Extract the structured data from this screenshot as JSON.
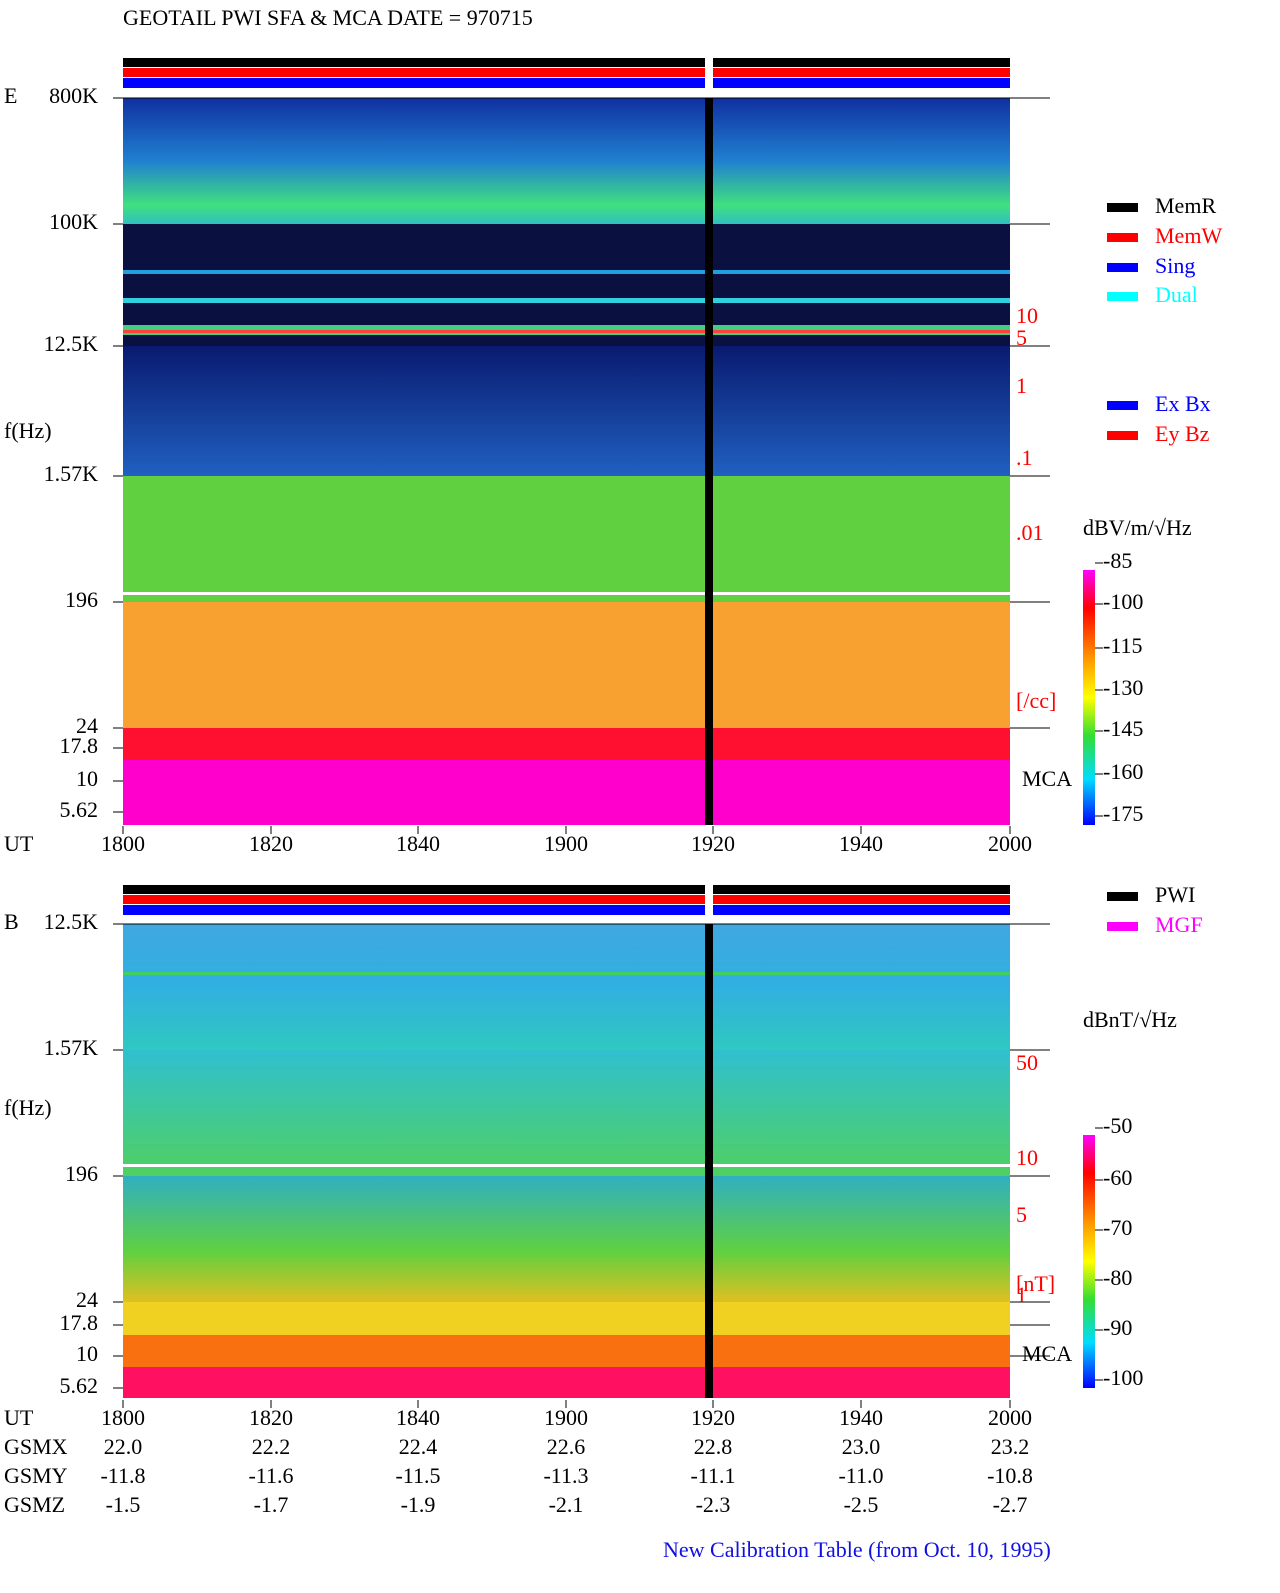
{
  "header": {
    "title": "GEOTAIL  PWI SFA & MCA   DATE = 970715"
  },
  "panels": [
    {
      "label": "E",
      "ylabel": "f(Hz)",
      "yticks": [
        "800K",
        "100K",
        "12.5K",
        "1.57K",
        "196",
        "24",
        "17.8",
        "10",
        "5.62"
      ],
      "right_ticks": [
        "10",
        "5",
        "1",
        ".1",
        ".01",
        "[/cc]"
      ],
      "mca": "MCA",
      "xlabel": "UT",
      "xticks": [
        "1800",
        "1820",
        "1840",
        "1900",
        "1920",
        "1940",
        "2000"
      ],
      "legend": [
        "MemR",
        "MemW",
        "Sing",
        "Dual"
      ],
      "legend2": [
        "Ex Bx",
        "Ey Bz"
      ],
      "colorbar": {
        "title": "dBV/m/√Hz",
        "ticks": [
          "-85",
          "-100",
          "-115",
          "-130",
          "-145",
          "-160",
          "-175"
        ]
      }
    },
    {
      "label": "B",
      "ylabel": "f(Hz)",
      "yticks": [
        "12.5K",
        "1.57K",
        "196",
        "24",
        "17.8",
        "10",
        "5.62"
      ],
      "right_ticks": [
        "50",
        "10",
        "5",
        "[nT]",
        "1"
      ],
      "mca": "MCA",
      "xlabel": "UT",
      "xticks": [
        "1800",
        "1820",
        "1840",
        "1900",
        "1920",
        "1940",
        "2000"
      ],
      "legend": [
        "PWI",
        "MGF"
      ],
      "colorbar": {
        "title": "dBnT/√Hz",
        "ticks": [
          "-50",
          "-60",
          "-70",
          "-80",
          "-90",
          "-100"
        ]
      }
    }
  ],
  "orbit": [
    {
      "name": "GSMX",
      "values": [
        "22.0",
        "22.2",
        "22.4",
        "22.6",
        "22.8",
        "23.0",
        "23.2"
      ]
    },
    {
      "name": "GSMY",
      "values": [
        "-11.8",
        "-11.6",
        "-11.5",
        "-11.3",
        "-11.1",
        "-11.0",
        "-10.8"
      ]
    },
    {
      "name": "GSMZ",
      "values": [
        "-1.5",
        "-1.7",
        "-1.9",
        "-2.1",
        "-2.3",
        "-2.5",
        "-2.7"
      ]
    }
  ],
  "footer": "New Calibration Table (from Oct. 10, 1995)"
}
